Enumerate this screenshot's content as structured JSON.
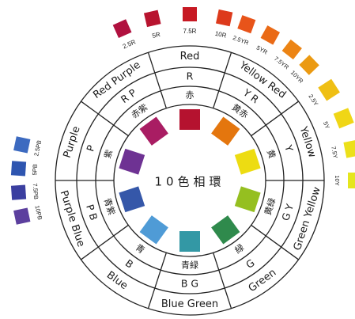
{
  "title": "10色相環",
  "hues": [
    {
      "outer": "Red",
      "code": "R",
      "kanji": "赤",
      "color": "#b5122f"
    },
    {
      "outer": "Yellow Red",
      "code": "Y R",
      "kanji": "黄赤",
      "color": "#e4760e"
    },
    {
      "outer": "Yellow",
      "code": "Y",
      "kanji": "黄",
      "color": "#eddc12"
    },
    {
      "outer": "Green Yellow",
      "code": "G Y",
      "kanji": "黄緑",
      "color": "#95bf20"
    },
    {
      "outer": "Green",
      "code": "G",
      "kanji": "緑",
      "color": "#2f8a4c"
    },
    {
      "outer": "Blue Green",
      "code": "B G",
      "kanji": "青緑",
      "color": "#3398a5"
    },
    {
      "outer": "Blue",
      "code": "B",
      "kanji": "青",
      "color": "#4f9bd6"
    },
    {
      "outer": "Purple Blue",
      "code": "P B",
      "kanji": "青紫",
      "color": "#3557a9"
    },
    {
      "outer": "Purple",
      "code": "P",
      "kanji": "紫",
      "color": "#6e3293"
    },
    {
      "outer": "Red Purple",
      "code": "R P",
      "kanji": "赤紫",
      "color": "#a91d63"
    }
  ],
  "red_scale": [
    {
      "label": "2.5R",
      "color": "#b0113f"
    },
    {
      "label": "5R",
      "color": "#b8142f"
    },
    {
      "label": "7.5R",
      "color": "#c71923"
    },
    {
      "label": "10R",
      "color": "#dd3a1c"
    }
  ],
  "yr_scale": [
    {
      "label": "2.5YR",
      "color": "#e8541a"
    },
    {
      "label": "5YR",
      "color": "#ea6a16"
    },
    {
      "label": "7.5YR",
      "color": "#ec8414"
    },
    {
      "label": "10YR",
      "color": "#eb9a12"
    }
  ],
  "y_scale": [
    {
      "label": "2.5Y",
      "color": "#efbf14"
    },
    {
      "label": "5Y",
      "color": "#f0d616"
    },
    {
      "label": "7.5Y",
      "color": "#ece01a"
    },
    {
      "label": "10Y",
      "color": "#e5e61e"
    }
  ],
  "pb_scale": [
    {
      "label": "10PB",
      "color": "#5c3f9e"
    },
    {
      "label": "7.5PB",
      "color": "#3b3fa0"
    },
    {
      "label": "5PB",
      "color": "#2e55b0"
    },
    {
      "label": "2.5PB",
      "color": "#3c6ac0"
    }
  ]
}
